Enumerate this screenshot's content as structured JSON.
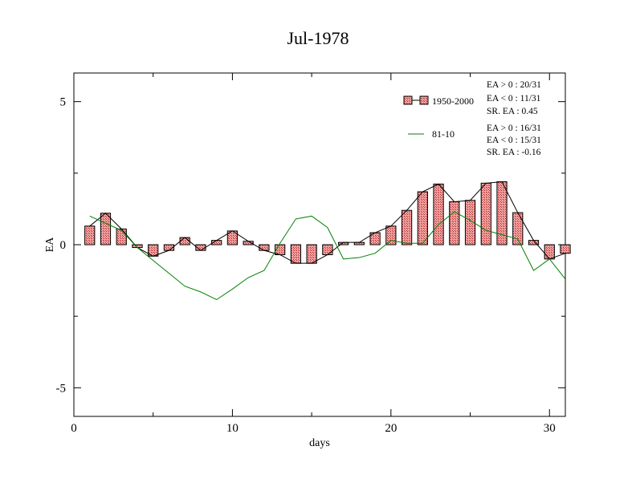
{
  "chart_data": {
    "type": "bar",
    "title": "Jul-1978",
    "xlabel": "days",
    "ylabel": "EA",
    "xlim": [
      0,
      31
    ],
    "ylim": [
      -6,
      6
    ],
    "xticks": [
      0,
      10,
      20,
      30
    ],
    "xtick_labels": [
      "0",
      "10",
      "20",
      "30"
    ],
    "yticks": [
      -5,
      0,
      5
    ],
    "ytick_labels": [
      "-5",
      "0",
      "5"
    ],
    "grid": false,
    "legend_position": "top-right",
    "colors": {
      "bar_fill": "#f08080",
      "bar_line": "#000000",
      "series_1981_2010": "#008000"
    },
    "series": [
      {
        "name": "1950-2000",
        "kind": "bar_with_line",
        "x": [
          1,
          2,
          3,
          4,
          5,
          6,
          7,
          8,
          9,
          10,
          11,
          12,
          13,
          14,
          15,
          16,
          17,
          18,
          19,
          20,
          21,
          22,
          23,
          24,
          25,
          26,
          27,
          28,
          29,
          30,
          31
        ],
        "values": [
          0.65,
          1.1,
          0.55,
          -0.1,
          -0.4,
          -0.2,
          0.25,
          -0.2,
          0.15,
          0.48,
          0.12,
          -0.2,
          -0.35,
          -0.65,
          -0.65,
          -0.35,
          0.08,
          0.08,
          0.42,
          0.65,
          1.2,
          1.85,
          2.12,
          1.5,
          1.55,
          2.15,
          2.2,
          1.12,
          0.15,
          -0.5,
          -0.3
        ]
      },
      {
        "name": "81-10",
        "kind": "line",
        "x": [
          1,
          2,
          3,
          4,
          5,
          6,
          7,
          8,
          9,
          10,
          11,
          12,
          13,
          14,
          15,
          16,
          17,
          18,
          19,
          20,
          21,
          22,
          23,
          24,
          25,
          26,
          27,
          28,
          29,
          30,
          31
        ],
        "values": [
          1.0,
          0.75,
          0.5,
          -0.1,
          -0.55,
          -1.0,
          -1.45,
          -1.65,
          -1.92,
          -1.55,
          -1.15,
          -0.9,
          0.05,
          0.9,
          1.0,
          0.6,
          -0.5,
          -0.45,
          -0.3,
          0.15,
          0.05,
          0.05,
          0.7,
          1.15,
          0.85,
          0.5,
          0.35,
          0.2,
          -0.9,
          -0.5,
          -1.2
        ]
      }
    ],
    "legend": [
      {
        "name": "1950-2000",
        "stats": [
          "EA > 0 : 20/31",
          "EA < 0 : 11/31",
          "SR. EA :  0.45"
        ]
      },
      {
        "name": "81-10",
        "stats": [
          "EA > 0 : 16/31",
          "EA < 0 : 15/31",
          "SR. EA : -0.16"
        ]
      }
    ]
  }
}
